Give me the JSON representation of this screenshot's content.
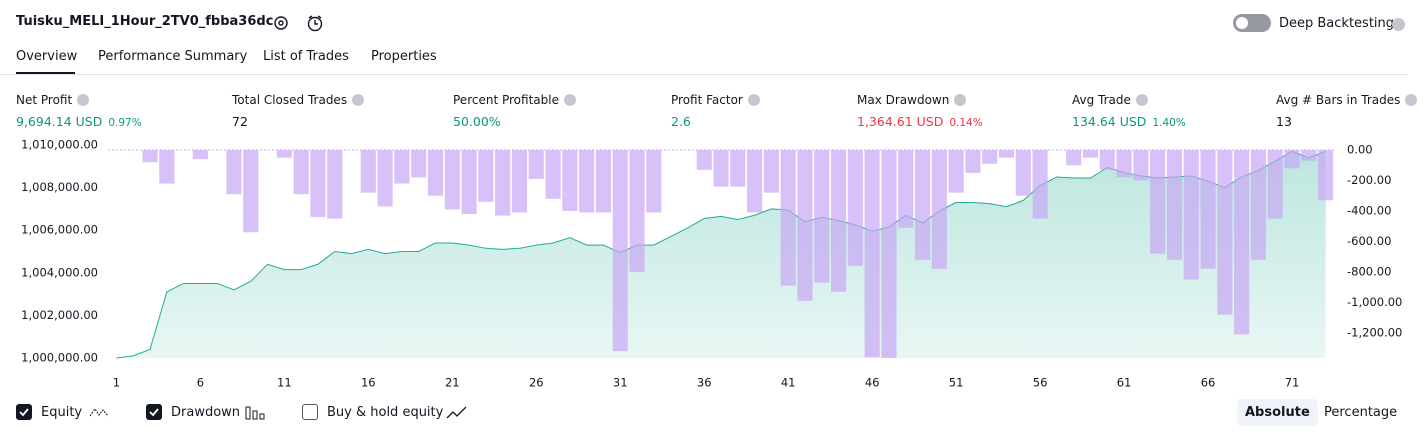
{
  "header": {
    "title": "Tuisku_MELI_1Hour_2TV0_fbba36dc",
    "deep_backtesting": "Deep Backtesting",
    "deep_backtesting_on": false
  },
  "tabs": {
    "items": [
      "Overview",
      "Performance Summary",
      "List of Trades",
      "Properties"
    ],
    "active": 0
  },
  "metrics": [
    {
      "label": "Net Profit",
      "value": "9,694.14 USD",
      "pct": "0.97%",
      "color": "#089981"
    },
    {
      "label": "Total Closed Trades",
      "value": "72",
      "color": "#131722"
    },
    {
      "label": "Percent Profitable",
      "value": "50.00%",
      "color": "#089981"
    },
    {
      "label": "Profit Factor",
      "value": "2.6",
      "color": "#089981"
    },
    {
      "label": "Max Drawdown",
      "value": "1,364.61 USD",
      "pct": "0.14%",
      "color": "#f23645"
    },
    {
      "label": "Avg Trade",
      "value": "134.64 USD",
      "pct": "1.40%",
      "color": "#089981"
    },
    {
      "label": "Avg # Bars in Trades",
      "value": "13",
      "color": "#131722"
    }
  ],
  "chart_data": {
    "type": "bar-line",
    "x": [
      1,
      2,
      3,
      4,
      5,
      6,
      7,
      8,
      9,
      10,
      11,
      12,
      13,
      14,
      15,
      16,
      17,
      18,
      19,
      20,
      21,
      22,
      23,
      24,
      25,
      26,
      27,
      28,
      29,
      30,
      31,
      32,
      33,
      34,
      35,
      36,
      37,
      38,
      39,
      40,
      41,
      42,
      43,
      44,
      45,
      46,
      47,
      48,
      49,
      50,
      51,
      52,
      53,
      54,
      55,
      56,
      57,
      58,
      59,
      60,
      61,
      62,
      63,
      64,
      65,
      66,
      67,
      68,
      69,
      70,
      71,
      72,
      73
    ],
    "xlim": [
      0.5,
      73.5
    ],
    "xticks": [
      1,
      6,
      11,
      16,
      21,
      26,
      31,
      36,
      41,
      46,
      51,
      56,
      61,
      66,
      71
    ],
    "ylim": [
      1000000,
      1010000
    ],
    "yticks": [
      {
        "value": 1000000,
        "label": "1,000,000.00"
      },
      {
        "value": 1002000,
        "label": "1,002,000.00"
      },
      {
        "value": 1004000,
        "label": "1,004,000.00"
      },
      {
        "value": 1006000,
        "label": "1,006,000.00"
      },
      {
        "value": 1008000,
        "label": "1,008,000.00"
      },
      {
        "value": 1010000,
        "label": "1,010,000.00"
      }
    ],
    "y2lim": [
      -1365,
      33
    ],
    "y2ticks": [
      {
        "value": 0,
        "label": "0.00"
      },
      {
        "value": -200,
        "label": "-200.00"
      },
      {
        "value": -400,
        "label": "-400.00"
      },
      {
        "value": -600,
        "label": "-600.00"
      },
      {
        "value": -800,
        "label": "-800.00"
      },
      {
        "value": -1000,
        "label": "-1,000.00"
      },
      {
        "value": -1200,
        "label": "-1,200.00"
      }
    ],
    "series": [
      {
        "name": "Equity",
        "color": "#22ab94",
        "visible": true,
        "kind": "area",
        "values": [
          1000000,
          1000100,
          1000400,
          1003100,
          1003500,
          1003500,
          1003500,
          1003200,
          1003600,
          1004400,
          1004150,
          1004150,
          1004400,
          1005000,
          1004900,
          1005100,
          1004900,
          1005000,
          1005000,
          1005400,
          1005400,
          1005300,
          1005150,
          1005100,
          1005150,
          1005300,
          1005400,
          1005650,
          1005300,
          1005300,
          1004950,
          1005300,
          1005300,
          1005700,
          1006100,
          1006550,
          1006650,
          1006500,
          1006700,
          1007000,
          1006950,
          1006400,
          1006600,
          1006450,
          1006250,
          1005950,
          1006150,
          1006700,
          1006350,
          1006900,
          1007300,
          1007300,
          1007250,
          1007100,
          1007400,
          1008100,
          1008500,
          1008450,
          1008450,
          1008950,
          1008700,
          1008550,
          1008450,
          1008500,
          1008550,
          1008300,
          1008000,
          1008500,
          1008800,
          1009250,
          1009700,
          1009400,
          1009694.14
        ]
      },
      {
        "name": "Drawdown",
        "color": "#c8a6f5",
        "visible": true,
        "kind": "bar",
        "axis": "y2",
        "values": [
          0,
          0,
          -80,
          -220,
          0,
          -60,
          0,
          -290,
          -540,
          0,
          -50,
          -290,
          -440,
          -450,
          0,
          -280,
          -370,
          -220,
          -180,
          -300,
          -390,
          -420,
          -340,
          -430,
          -410,
          -190,
          -320,
          -400,
          -410,
          -410,
          -1320,
          -800,
          -410,
          0,
          0,
          -130,
          -240,
          -240,
          -410,
          -280,
          -890,
          -990,
          -870,
          -930,
          -760,
          -1360,
          -1364.61,
          -510,
          -720,
          -780,
          -280,
          -150,
          -90,
          -50,
          -300,
          -450,
          0,
          -100,
          -50,
          -130,
          -180,
          -200,
          -680,
          -720,
          -850,
          -780,
          -1080,
          -1210,
          -720,
          -450,
          -120,
          -70,
          -330
        ]
      }
    ]
  },
  "footer": {
    "buy_hold": {
      "label": "Buy & hold equity",
      "checked": false
    },
    "modes": [
      "Absolute",
      "Percentage"
    ],
    "active_mode": 0
  }
}
